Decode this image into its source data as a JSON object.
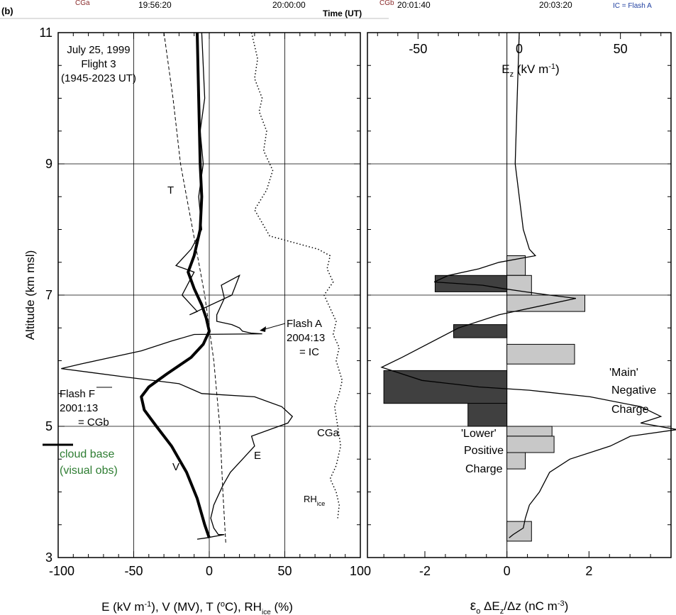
{
  "header": {
    "panel_letter": "(b)",
    "time_axis_label": "Time (UT)",
    "times": [
      "19:56:20",
      "20:00:00",
      "20:01:40",
      "20:03:20"
    ],
    "markers": [
      "CGa",
      "CGb",
      "IC = Flash A"
    ]
  },
  "colors": {
    "positive_bar": "#c8c8c8",
    "negative_bar": "#404040",
    "cloud_base_text": "#2e7d32",
    "header_marker": "#8b2c2c"
  },
  "chart_data": [
    {
      "type": "line",
      "panel": "left",
      "title_lines": [
        "July 25, 1999",
        "Flight 3",
        "(1945-2023 UT)"
      ],
      "xlabel": "E (kV m-1), V (MV), T (oC), RHice (%)",
      "xlabel_parts": {
        "e": "E (kV m",
        "e_exp": "-1",
        "v": "), V (MV), T (",
        "t_exp": "o",
        "t": "C), RH",
        "rh_sub": "ice",
        "rh": " (%)"
      },
      "ylabel": "Altitude (km msl)",
      "xlim": [
        -100,
        100
      ],
      "ylim": [
        3,
        11
      ],
      "xticks": [
        -100,
        -50,
        0,
        50,
        100
      ],
      "xtick_labels": [
        "-100",
        "-50",
        "0",
        "50",
        "100"
      ],
      "yticks": [
        3,
        5,
        7,
        9,
        11
      ],
      "ytick_labels": [
        "3",
        "5",
        "7",
        "9",
        "11"
      ],
      "grid": true,
      "series": [
        {
          "name": "E",
          "style": "thin-solid",
          "x": [
            -5,
            -3,
            -6,
            -4,
            -7,
            -5,
            -12,
            -22,
            -10,
            -18,
            -8,
            -13,
            15,
            20,
            8,
            10,
            5,
            5,
            15,
            20,
            22,
            28,
            35,
            -10,
            -25,
            -45,
            -85,
            -98,
            -55,
            -20,
            -10,
            -5,
            30,
            48,
            55,
            52,
            40,
            28,
            30,
            22,
            14,
            9,
            5,
            3,
            2,
            1,
            3,
            6,
            10,
            -2,
            -8
          ],
          "y": [
            11,
            10,
            9.5,
            9,
            8.5,
            8,
            7.7,
            7.45,
            7.35,
            7.0,
            6.75,
            6.7,
            7.0,
            7.3,
            7.15,
            6.95,
            6.7,
            6.6,
            6.55,
            6.5,
            6.45,
            6.42,
            6.41,
            6.4,
            6.3,
            6.15,
            5.95,
            5.88,
            5.75,
            5.65,
            5.55,
            5.5,
            5.45,
            5.3,
            5.15,
            5.05,
            4.95,
            4.85,
            4.7,
            4.5,
            4.3,
            4.1,
            3.9,
            3.8,
            3.7,
            3.6,
            3.45,
            3.35,
            3.35,
            3.3,
            3.28
          ]
        },
        {
          "name": "V",
          "style": "thick-solid",
          "x": [
            -8,
            -7,
            -6,
            -5,
            -6,
            -10,
            -14,
            -10,
            -5,
            -2,
            0,
            -4,
            -12,
            -28,
            -40,
            -45,
            -43,
            -35,
            -25,
            -15,
            -8,
            -3,
            0
          ],
          "y": [
            11,
            10,
            9,
            8.5,
            8,
            7.6,
            7.35,
            7.1,
            6.85,
            6.65,
            6.45,
            6.25,
            6.05,
            5.8,
            5.6,
            5.45,
            5.25,
            5.0,
            4.7,
            4.3,
            3.9,
            3.5,
            3.3
          ]
        },
        {
          "name": "T",
          "style": "dashed",
          "x": [
            -30,
            -24,
            -19,
            -15,
            -11,
            -7,
            -3,
            0,
            3,
            5,
            7,
            9,
            11
          ],
          "y": [
            11,
            10,
            9,
            8.5,
            8,
            7.5,
            7,
            6.5,
            6,
            5.5,
            5,
            4,
            3.2
          ]
        },
        {
          "name": "RH",
          "style": "dotted",
          "x": [
            28,
            32,
            30,
            35,
            33,
            38,
            36,
            42,
            38,
            30,
            40,
            72,
            80,
            78,
            82,
            76,
            80,
            84,
            82,
            86,
            84,
            88,
            86,
            83,
            85,
            87,
            84,
            80,
            84,
            86,
            85
          ],
          "y": [
            11,
            10.6,
            10.3,
            10.0,
            9.8,
            9.5,
            9.2,
            8.9,
            8.6,
            8.3,
            7.9,
            7.7,
            7.6,
            7.4,
            7.2,
            7.0,
            6.8,
            6.6,
            6.4,
            6.2,
            6.0,
            5.7,
            5.5,
            5.3,
            5.0,
            4.7,
            4.4,
            4.2,
            4.0,
            3.8,
            3.6
          ]
        }
      ],
      "annotations": {
        "t": "T",
        "v": "V",
        "e": "E",
        "rh": "RH",
        "rh_sub": "ice",
        "cga": "CGa",
        "flash_a_lines": [
          "Flash A",
          "2004:13",
          "= IC"
        ],
        "flash_f_lines": [
          "Flash F",
          "2001:13",
          "= CGb"
        ],
        "cloud_base_lines": [
          "cloud base",
          "(visual obs)"
        ]
      }
    },
    {
      "type": "bar+line",
      "panel": "right",
      "top_axis": {
        "label": "Ez (kV m-1)",
        "label_main": "E",
        "label_sub": "z",
        "label_rest": " (kV m",
        "label_exp": "-1",
        "label_close": ")",
        "lim": [
          -75,
          75
        ],
        "ticks": [
          -50,
          0,
          50
        ],
        "tick_labels": [
          "-50",
          "0",
          "50"
        ]
      },
      "xlabel": "εo ΔEz/Δz (nC m-3)",
      "xlabel_parts": {
        "eps": "ε",
        "eps_sub": "o",
        "mid": " ΔE",
        "z_sub": "z",
        "rest": "/Δz (nC m",
        "exp": "-3",
        "close": ")"
      },
      "xlim": [
        -3.4,
        4
      ],
      "xticks": [
        -2,
        0,
        2
      ],
      "xtick_labels": [
        "-2",
        "0",
        "2"
      ],
      "ylim": [
        3,
        11
      ],
      "grid": true,
      "bars": [
        {
          "y0": 7.3,
          "y1": 7.6,
          "value": 0.45
        },
        {
          "y0": 7.0,
          "y1": 7.3,
          "value": 0.6
        },
        {
          "y0": 6.75,
          "y1": 7.0,
          "value": 1.9
        },
        {
          "y0": 5.95,
          "y1": 6.25,
          "value": 1.65
        },
        {
          "y0": 4.85,
          "y1": 5.0,
          "value": 1.1
        },
        {
          "y0": 4.6,
          "y1": 4.85,
          "value": 1.15
        },
        {
          "y0": 4.35,
          "y1": 4.6,
          "value": 0.45
        },
        {
          "y0": 3.25,
          "y1": 3.55,
          "value": 0.6
        },
        {
          "y0": 7.05,
          "y1": 7.3,
          "value": -1.75
        },
        {
          "y0": 6.35,
          "y1": 6.55,
          "value": -1.3
        },
        {
          "y0": 5.35,
          "y1": 5.85,
          "value": -3.0
        },
        {
          "y0": 5.0,
          "y1": 5.35,
          "value": -0.95
        }
      ],
      "ez_x": [
        0,
        -1,
        -2,
        0,
        2,
        5,
        8,
        -10,
        -20,
        -35,
        -42,
        -18,
        -8,
        3,
        15,
        28,
        -10,
        -30,
        -58,
        -68,
        -48,
        -20,
        5,
        35,
        60,
        70,
        60,
        78,
        55,
        45,
        25,
        15,
        10,
        5,
        3,
        2,
        -3,
        -5
      ],
      "ez_y": [
        11,
        10,
        9,
        8.5,
        8,
        7.7,
        7.6,
        7.5,
        7.4,
        7.3,
        7.2,
        7.15,
        7.1,
        7.05,
        7.0,
        6.95,
        6.7,
        6.5,
        6.05,
        5.9,
        5.7,
        5.6,
        5.55,
        5.45,
        5.3,
        5.15,
        5.05,
        4.95,
        4.85,
        4.7,
        4.5,
        4.3,
        4.0,
        3.8,
        3.6,
        3.45,
        3.35,
        3.3
      ],
      "labels": {
        "main_negative": [
          "'Main'",
          "Negative",
          "Charge"
        ],
        "lower_positive": [
          "'Lower'",
          "Positive",
          "Charge"
        ]
      }
    }
  ]
}
